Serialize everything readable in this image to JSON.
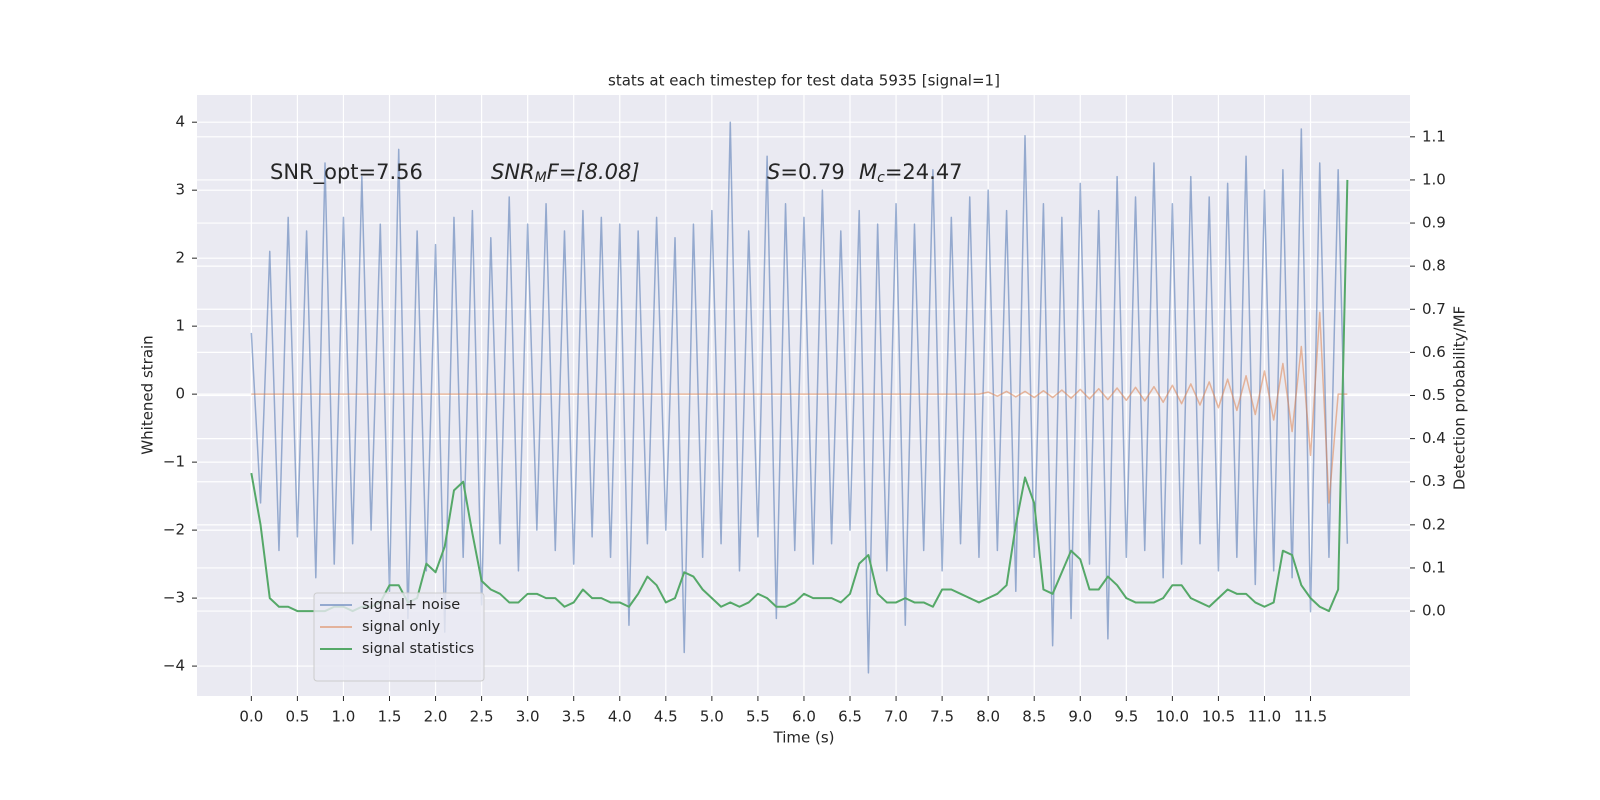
{
  "chart_data": {
    "type": "line",
    "title": "stats at each timestep for test data 5935 [signal=1]",
    "xlabel": "Time (s)",
    "ylabel": "Whitened strain",
    "y2label": "Detection probability/MF",
    "annotations": [
      "SNR_opt=7.56",
      [
        "SNR",
        "M",
        "F=[8.08]"
      ],
      [
        "S",
        "=0.79"
      ],
      [
        "M",
        "c",
        "=24.47"
      ]
    ],
    "x": [
      0,
      0.1,
      0.2,
      0.3,
      0.4,
      0.5,
      0.6,
      0.7,
      0.8,
      0.9,
      1,
      1.1,
      1.2,
      1.3,
      1.4,
      1.5,
      1.6,
      1.7,
      1.8,
      1.9,
      2,
      2.1,
      2.2,
      2.3,
      2.4,
      2.5,
      2.6,
      2.7,
      2.8,
      2.9,
      3,
      3.1,
      3.2,
      3.3,
      3.4,
      3.5,
      3.6,
      3.7,
      3.8,
      3.9,
      4,
      4.1,
      4.2,
      4.3,
      4.4,
      4.5,
      4.6,
      4.7,
      4.8,
      4.9,
      5,
      5.1,
      5.2,
      5.3,
      5.4,
      5.5,
      5.6,
      5.7,
      5.8,
      5.9,
      6,
      6.1,
      6.2,
      6.3,
      6.4,
      6.5,
      6.6,
      6.7,
      6.8,
      6.9,
      7,
      7.1,
      7.2,
      7.3,
      7.4,
      7.5,
      7.6,
      7.7,
      7.8,
      7.9,
      8,
      8.1,
      8.2,
      8.3,
      8.4,
      8.5,
      8.6,
      8.7,
      8.8,
      8.9,
      9,
      9.1,
      9.2,
      9.3,
      9.4,
      9.5,
      9.6,
      9.7,
      9.8,
      9.9,
      10,
      10.1,
      10.2,
      10.3,
      10.4,
      10.5,
      10.6,
      10.7,
      10.8,
      10.9,
      11,
      11.1,
      11.2,
      11.3,
      11.4,
      11.5,
      11.6,
      11.7,
      11.8,
      11.9
    ],
    "series": [
      {
        "name": "signal+ noise",
        "color": "#4c72b0",
        "values": [
          0.9,
          -1.6,
          2.1,
          -2.3,
          2.6,
          -2.1,
          2.4,
          -2.7,
          3.4,
          -2.5,
          2.6,
          -2.2,
          3.2,
          -2.0,
          2.5,
          -2.9,
          3.6,
          -3.3,
          2.4,
          -2.6,
          2.2,
          -3.5,
          2.6,
          -2.4,
          2.7,
          -3.1,
          2.3,
          -2.2,
          2.9,
          -2.6,
          2.5,
          -2.0,
          2.8,
          -2.3,
          2.4,
          -2.5,
          2.7,
          -2.1,
          2.6,
          -2.4,
          2.5,
          -3.4,
          2.4,
          -2.2,
          2.6,
          -2.0,
          2.3,
          -3.8,
          2.5,
          -2.4,
          2.7,
          -2.2,
          4.0,
          -2.6,
          2.4,
          -2.1,
          3.5,
          -3.3,
          2.8,
          -2.3,
          2.6,
          -2.5,
          3.0,
          -2.2,
          2.4,
          -2.0,
          2.7,
          -4.1,
          2.5,
          -2.6,
          2.8,
          -3.4,
          2.5,
          -2.3,
          3.3,
          -2.6,
          2.6,
          -2.2,
          2.9,
          -2.4,
          3.0,
          -2.3,
          2.7,
          -2.9,
          3.8,
          -2.4,
          2.8,
          -3.7,
          2.6,
          -3.3,
          3.1,
          -2.5,
          2.7,
          -3.6,
          3.2,
          -2.4,
          2.9,
          -2.3,
          3.4,
          -2.7,
          2.8,
          -2.5,
          3.2,
          -2.2,
          2.9,
          -2.6,
          3.1,
          -2.4,
          3.5,
          -2.8,
          3.0,
          -2.6,
          3.3,
          -2.7,
          3.9,
          -3.2,
          3.4,
          -2.4,
          3.3,
          -2.2
        ]
      },
      {
        "name": "signal only",
        "color": "#dd8452",
        "values": [
          0,
          0,
          0,
          0,
          0,
          0,
          0,
          0,
          0,
          0,
          0,
          0,
          0,
          0,
          0,
          0,
          0,
          0,
          0,
          0,
          0,
          0,
          0,
          0,
          0,
          0,
          0,
          0,
          0,
          0,
          0,
          0,
          0,
          0,
          0,
          0,
          0,
          0,
          0,
          0,
          0,
          0,
          0,
          0,
          0,
          0,
          0,
          0,
          0,
          0,
          0,
          0,
          0,
          0,
          0,
          0,
          0,
          0,
          0,
          0,
          0,
          0,
          0,
          0,
          0,
          0,
          0,
          0,
          0,
          0,
          0,
          0,
          0,
          0,
          0,
          0,
          0,
          0,
          0,
          0,
          0.03,
          -0.03,
          0.04,
          -0.04,
          0.04,
          -0.05,
          0.05,
          -0.05,
          0.06,
          -0.06,
          0.07,
          -0.07,
          0.08,
          -0.08,
          0.09,
          -0.09,
          0.1,
          -0.1,
          0.11,
          -0.12,
          0.13,
          -0.14,
          0.15,
          -0.16,
          0.18,
          -0.2,
          0.22,
          -0.24,
          0.27,
          -0.3,
          0.34,
          -0.38,
          0.45,
          -0.55,
          0.7,
          -0.9,
          1.2,
          -1.6,
          0,
          0
        ]
      },
      {
        "name": "signal statistics",
        "color": "#55a868",
        "axis": "y2",
        "values": [
          0.32,
          0.2,
          0.03,
          0.01,
          0.01,
          0,
          0,
          0,
          0,
          0.01,
          0.01,
          0,
          0.01,
          0.01,
          0.02,
          0.06,
          0.06,
          0.02,
          0.03,
          0.11,
          0.09,
          0.15,
          0.28,
          0.3,
          0.18,
          0.07,
          0.05,
          0.04,
          0.02,
          0.02,
          0.04,
          0.04,
          0.03,
          0.03,
          0.01,
          0.02,
          0.05,
          0.03,
          0.03,
          0.02,
          0.02,
          0.01,
          0.04,
          0.08,
          0.06,
          0.02,
          0.03,
          0.09,
          0.08,
          0.05,
          0.03,
          0.01,
          0.02,
          0.01,
          0.02,
          0.04,
          0.03,
          0.01,
          0.01,
          0.02,
          0.04,
          0.03,
          0.03,
          0.03,
          0.02,
          0.04,
          0.11,
          0.13,
          0.04,
          0.02,
          0.02,
          0.03,
          0.02,
          0.02,
          0.01,
          0.05,
          0.05,
          0.04,
          0.03,
          0.02,
          0.03,
          0.04,
          0.06,
          0.2,
          0.31,
          0.25,
          0.05,
          0.04,
          0.09,
          0.14,
          0.12,
          0.05,
          0.05,
          0.08,
          0.06,
          0.03,
          0.02,
          0.02,
          0.02,
          0.03,
          0.06,
          0.06,
          0.03,
          0.02,
          0.01,
          0.03,
          0.05,
          0.04,
          0.04,
          0.02,
          0.01,
          0.02,
          0.14,
          0.13,
          0.06,
          0.03,
          0.01,
          0,
          0.05,
          1.0
        ]
      }
    ],
    "xlim": [
      -0.59,
      12.58
    ],
    "xticks": [
      {
        "value": 0,
        "label": "0.0"
      },
      0.5,
      {
        "value": 1,
        "label": "1.0"
      },
      1.5,
      {
        "value": 2,
        "label": "2.0"
      },
      2.5,
      {
        "value": 3,
        "label": "3.0"
      },
      3.5,
      {
        "value": 4,
        "label": "4.0"
      },
      4.5,
      {
        "value": 5,
        "label": "5.0"
      },
      5.5,
      {
        "value": 6,
        "label": "6.0"
      },
      6.5,
      {
        "value": 7,
        "label": "7.0"
      },
      7.5,
      {
        "value": 8,
        "label": "8.0"
      },
      8.5,
      {
        "value": 9,
        "label": "9.0"
      },
      9.5,
      {
        "value": 10,
        "label": "10.0"
      },
      10.5,
      {
        "value": 11,
        "label": "11.0"
      },
      11.5
    ],
    "ylim": [
      -4.44,
      4.4
    ],
    "yticks": [
      {
        "value": -4,
        "label": "−4"
      },
      {
        "value": -3,
        "label": "−3"
      },
      {
        "value": -2,
        "label": "−2"
      },
      {
        "value": -1,
        "label": "−1"
      },
      0,
      1,
      2,
      3,
      4
    ],
    "y2lim": [
      -0.197,
      1.197
    ],
    "y2ticks": [
      {
        "value": 0,
        "label": "0.0"
      },
      0.1,
      0.2,
      0.3,
      0.4,
      0.5,
      0.6,
      0.7,
      0.8,
      0.9,
      {
        "value": 1,
        "label": "1.0"
      },
      1.1
    ],
    "grid": true,
    "legend": "lower left"
  }
}
